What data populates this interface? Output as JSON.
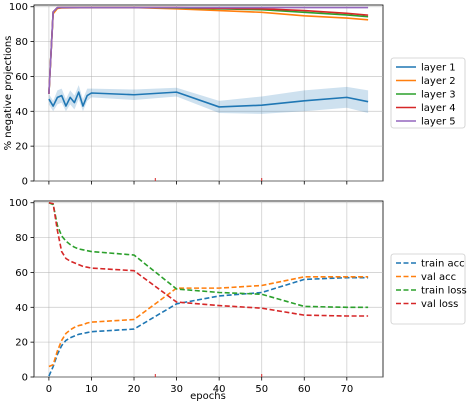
{
  "chart_data": [
    {
      "type": "line",
      "xlabel": "",
      "ylabel": "% negative projections",
      "xlim": [
        -3.5,
        78.5
      ],
      "ylim": [
        0,
        101
      ],
      "xticks": [
        0,
        10,
        20,
        30,
        40,
        50,
        60,
        70
      ],
      "yticks": [
        0,
        20,
        40,
        60,
        80,
        100
      ],
      "xtick_labels_shown": false,
      "grid": true,
      "legend": "right",
      "series": [
        {
          "name": "layer 1",
          "color": "#1f77b4",
          "x": [
            0,
            1,
            2,
            3,
            4,
            5,
            6,
            7,
            8,
            9,
            10,
            20,
            30,
            40,
            50,
            60,
            70,
            75
          ],
          "y": [
            47,
            43,
            48,
            49,
            43,
            48,
            45,
            51,
            43,
            49,
            50.5,
            49.5,
            51,
            42.5,
            43.5,
            46,
            48,
            45.5
          ],
          "band_lower": [
            44,
            40,
            44,
            45,
            40,
            44,
            41,
            47,
            40,
            46,
            48,
            46.5,
            48.5,
            39,
            38.5,
            40,
            42,
            39
          ],
          "band_upper": [
            50,
            46,
            52,
            53,
            47,
            52,
            49,
            55,
            47,
            53,
            53,
            52.5,
            53.5,
            46,
            48.5,
            52,
            54,
            52
          ]
        },
        {
          "name": "layer 2",
          "color": "#ff7f0e",
          "x": [
            0,
            1,
            2,
            3,
            5,
            10,
            20,
            30,
            40,
            50,
            60,
            70,
            75
          ],
          "y": [
            50,
            96,
            99,
            99.3,
            99.4,
            99.5,
            99.5,
            98.8,
            97.8,
            96.8,
            94.8,
            93.5,
            92.5
          ]
        },
        {
          "name": "layer 3",
          "color": "#2ca02c",
          "x": [
            0,
            1,
            2,
            3,
            5,
            10,
            20,
            30,
            40,
            50,
            60,
            70,
            75
          ],
          "y": [
            50,
            97,
            99.4,
            99.5,
            99.5,
            99.5,
            99.5,
            99.3,
            98.8,
            98.3,
            96.8,
            95.3,
            94.3
          ]
        },
        {
          "name": "layer 4",
          "color": "#d62728",
          "x": [
            0,
            1,
            2,
            3,
            5,
            10,
            20,
            30,
            40,
            50,
            60,
            70,
            75
          ],
          "y": [
            50,
            97,
            99.5,
            99.5,
            99.5,
            99.5,
            99.5,
            99.5,
            99.1,
            98.8,
            97.8,
            96.2,
            95.2
          ]
        },
        {
          "name": "layer 5",
          "color": "#9467bd",
          "x": [
            0,
            1,
            2,
            3,
            5,
            10,
            20,
            30,
            40,
            50,
            60,
            70,
            75
          ],
          "y": [
            50,
            97,
            99.5,
            99.5,
            99.5,
            99.5,
            99.5,
            99.5,
            99.5,
            99.5,
            99.5,
            99.5,
            99.5
          ]
        }
      ],
      "vmarkers": [
        25,
        50
      ]
    },
    {
      "type": "line",
      "xlabel": "epochs",
      "ylabel": "",
      "xlim": [
        -3.5,
        78.5
      ],
      "ylim": [
        0,
        101
      ],
      "xticks": [
        0,
        10,
        20,
        30,
        40,
        50,
        60,
        70
      ],
      "yticks": [
        0,
        20,
        40,
        60,
        80,
        100
      ],
      "grid": true,
      "legend": "right",
      "line_style": "dashed",
      "series": [
        {
          "name": "train acc",
          "color": "#1f77b4",
          "x": [
            0,
            1,
            2,
            3,
            4,
            5,
            6,
            7,
            8,
            9,
            10,
            20,
            30,
            40,
            50,
            60,
            70,
            75
          ],
          "y": [
            0.5,
            6,
            13,
            18,
            21,
            22.5,
            23.5,
            24.5,
            25,
            25.5,
            26,
            27.5,
            42,
            46.5,
            48.5,
            56,
            57,
            57
          ]
        },
        {
          "name": "val acc",
          "color": "#ff7f0e",
          "x": [
            0,
            1,
            2,
            3,
            4,
            5,
            6,
            7,
            8,
            9,
            10,
            20,
            30,
            40,
            50,
            60,
            70,
            75
          ],
          "y": [
            6,
            7,
            15,
            21,
            25,
            27,
            28.5,
            29.5,
            30,
            31,
            31.5,
            33,
            51,
            51,
            52.5,
            57.5,
            57.5,
            57.5
          ]
        },
        {
          "name": "train loss",
          "color": "#2ca02c",
          "x": [
            0,
            1,
            2,
            3,
            4,
            5,
            6,
            7,
            8,
            9,
            10,
            20,
            30,
            40,
            50,
            60,
            70,
            75
          ],
          "y": [
            100,
            99,
            87,
            81,
            78,
            76,
            74.5,
            73.5,
            73,
            72.5,
            72,
            70,
            50.5,
            48.5,
            47.5,
            40.5,
            40,
            40
          ]
        },
        {
          "name": "val loss",
          "color": "#d62728",
          "x": [
            0,
            1,
            2,
            3,
            4,
            5,
            6,
            7,
            8,
            9,
            10,
            20,
            30,
            40,
            50,
            60,
            70,
            75
          ],
          "y": [
            100,
            99.5,
            84,
            72,
            68,
            66.5,
            65.5,
            64.5,
            63.5,
            63,
            62.5,
            61,
            43,
            41,
            39.5,
            35.5,
            35,
            35
          ]
        }
      ],
      "vmarkers": [
        25,
        50
      ]
    }
  ]
}
